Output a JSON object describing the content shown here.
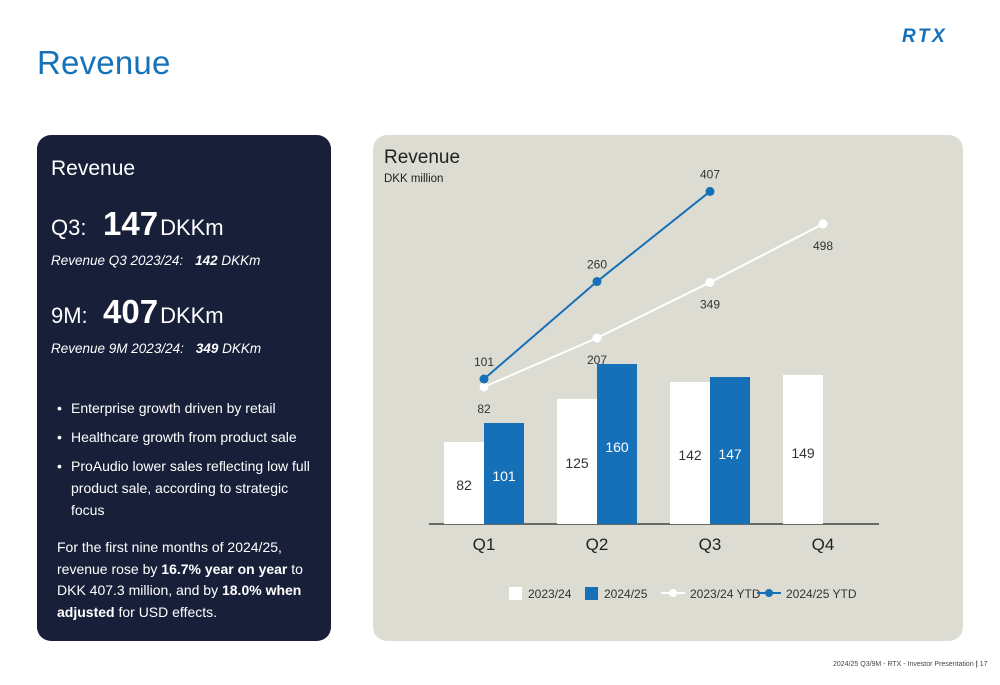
{
  "header": {
    "title": "Revenue",
    "logo_text": "RTX"
  },
  "left_panel": {
    "heading": "Revenue",
    "q3": {
      "label": "Q3:",
      "value": "147",
      "unit": "DKKm",
      "sub_label": "Revenue Q3 2023/24:",
      "sub_value": "142",
      "sub_unit": "DKKm"
    },
    "nine_m": {
      "label": "9M:",
      "value": "407",
      "unit": "DKKm",
      "sub_label": "Revenue 9M 2023/24:",
      "sub_value": "349",
      "sub_unit": "DKKm"
    },
    "bullets": [
      "Enterprise growth driven by retail",
      "Healthcare growth from product sale",
      "ProAudio lower sales reflecting low full product sale, according to strategic focus"
    ],
    "summary": {
      "p1": "For the first nine months of 2024/25, revenue rose by ",
      "b1": "16.7% year on year",
      "p2": " to DKK 407.3 million, and by ",
      "b2": "18.0% when adjusted",
      "p3": " for USD effects."
    }
  },
  "chart_data": {
    "type": "bar",
    "title": "Revenue",
    "subtitle": "DKK million",
    "categories": [
      "Q1",
      "Q2",
      "Q3",
      "Q4"
    ],
    "series": [
      {
        "name": "2023/24",
        "kind": "bar",
        "color": "#ffffff",
        "values": [
          82,
          125,
          142,
          149
        ]
      },
      {
        "name": "2024/25",
        "kind": "bar",
        "color": "#1570b8",
        "values": [
          101,
          160,
          147,
          null
        ]
      },
      {
        "name": "2023/24 YTD",
        "kind": "line",
        "color": "#ffffff",
        "values": [
          82,
          207,
          349,
          498
        ]
      },
      {
        "name": "2024/25 YTD",
        "kind": "line",
        "color": "#1570b8",
        "values": [
          101,
          260,
          407,
          null
        ]
      }
    ],
    "legend_position": "bottom",
    "grid": false
  },
  "footer": {
    "text": "2024/25 Q3/9M - RTX - Investor Presentation",
    "separator": "|",
    "page": "17"
  }
}
